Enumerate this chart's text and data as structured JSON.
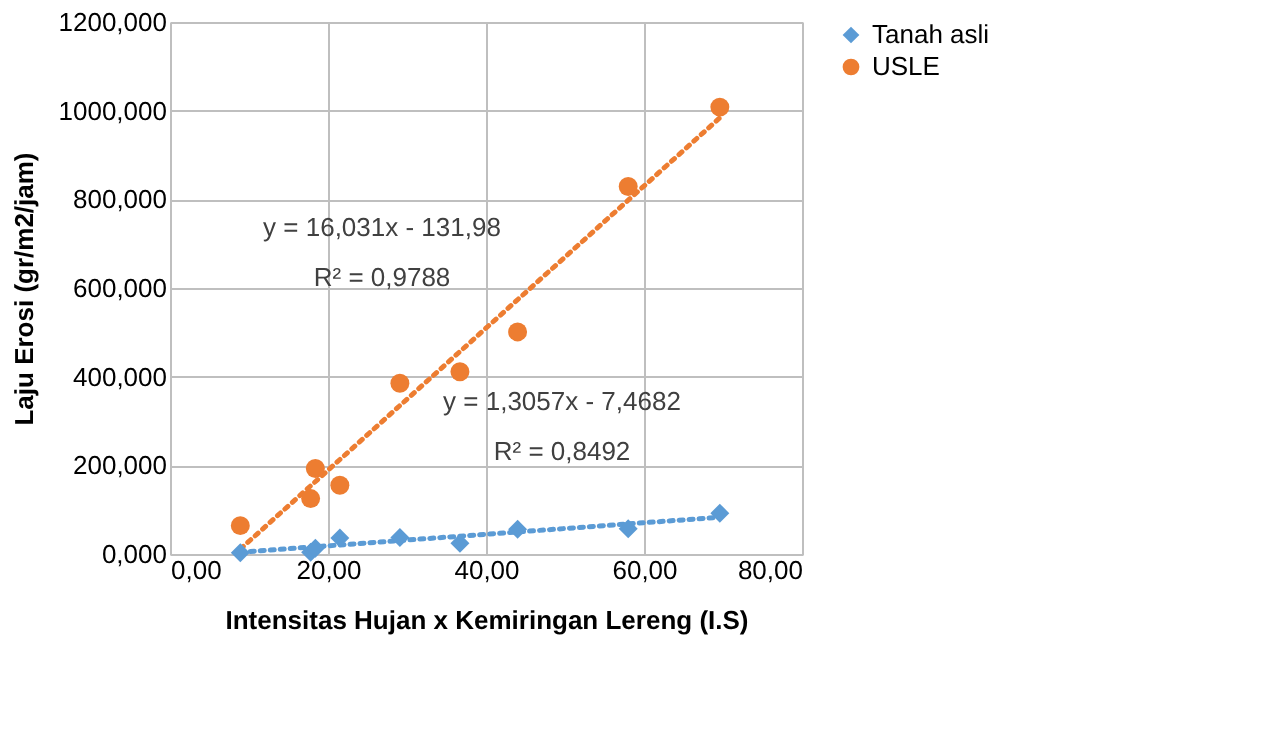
{
  "chart_data": {
    "type": "scatter",
    "xlabel": "Intensitas Hujan x Kemiringan Lereng (I.S)",
    "ylabel": "Laju Erosi (gr/m2/jam)",
    "xlim": [
      0,
      80
    ],
    "xticks": [
      {
        "value": 0,
        "label": "0,00"
      },
      {
        "value": 20,
        "label": "20,00"
      },
      {
        "value": 40,
        "label": "40,00"
      },
      {
        "value": 60,
        "label": "60,00"
      },
      {
        "value": 80,
        "label": "80,00"
      }
    ],
    "ylim": [
      0,
      1200
    ],
    "yticks": [
      {
        "value": 0,
        "label": "0,000"
      },
      {
        "value": 200,
        "label": "200,000"
      },
      {
        "value": 400,
        "label": "400,000"
      },
      {
        "value": 600,
        "label": "600,000"
      },
      {
        "value": 800,
        "label": "800,000"
      },
      {
        "value": 1000,
        "label": "1000,000"
      },
      {
        "value": 1200,
        "label": "1200,000"
      }
    ],
    "grid": true,
    "legend": "right",
    "series": [
      {
        "name": "Tanah asli",
        "color": "#5b9bd5",
        "marker": "diamond",
        "x": [
          8.9,
          17.8,
          18.4,
          21.5,
          29.1,
          36.7,
          44.0,
          58.0,
          69.6
        ],
        "values": [
          3,
          4,
          13,
          36,
          37,
          24,
          56,
          57,
          92
        ]
      },
      {
        "name": "USLE",
        "color": "#ed7d31",
        "marker": "circle",
        "x": [
          8.9,
          17.8,
          18.4,
          21.5,
          29.1,
          36.7,
          44.0,
          58.0,
          69.6
        ],
        "values": [
          64,
          125,
          193,
          155,
          385,
          411,
          501,
          829,
          1008
        ]
      },
      {
        "type": "line",
        "color": "#5b9bd5",
        "line_style": "dotted",
        "marker": "none",
        "x": [
          8.9,
          69.6
        ],
        "values": [
          4,
          83
        ]
      },
      {
        "type": "line",
        "color": "#ed7d31",
        "line_style": "dotted",
        "marker": "none",
        "x": [
          8.9,
          69.6
        ],
        "values": [
          11,
          984
        ]
      }
    ],
    "annotations": [
      "y = 16,031x - 131,98",
      "R² = 0,9788",
      "y = 1,3057x - 7,4682",
      "R² = 0,8492"
    ]
  }
}
